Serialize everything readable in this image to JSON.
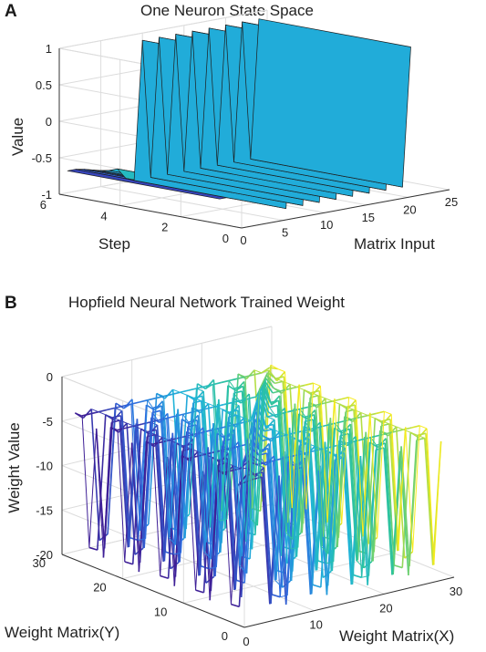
{
  "chart_data": [
    {
      "panel": "A",
      "type": "surface",
      "title": "One Neuron State Space",
      "xlabel": "Matrix Input",
      "ylabel": "Step",
      "zlabel": "Value",
      "xlim": [
        0,
        25
      ],
      "ylim": [
        0,
        6
      ],
      "zlim": [
        -1,
        1
      ],
      "xticks": [
        "0",
        "5",
        "10",
        "15",
        "20",
        "25"
      ],
      "yticks": [
        "0",
        "2",
        "4",
        "6"
      ],
      "zticks": [
        "-1",
        "-0.5",
        "0",
        "0.5",
        "1"
      ],
      "matrix_input": [
        1,
        2,
        3,
        4,
        5,
        6,
        7,
        8,
        9,
        10,
        11,
        12,
        13,
        14,
        15,
        16,
        17,
        18,
        19,
        20,
        21,
        22,
        23,
        24
      ],
      "steps": [
        1,
        6
      ],
      "value_at_step_1": [
        -0.7,
        -0.7,
        -0.72,
        -0.75,
        -0.78,
        -0.8,
        -0.8,
        -0.95,
        -1,
        0.9,
        -1,
        0.9,
        -1,
        0.9,
        -1,
        0.9,
        -1,
        0.9,
        -1,
        0.9,
        -1,
        0.9,
        -1,
        0.9
      ],
      "value_at_step_6": [
        -0.7,
        -0.7,
        -0.72,
        -0.75,
        -0.78,
        -0.8,
        -0.8,
        -0.95,
        -1,
        0.9,
        -1,
        0.9,
        -1,
        0.9,
        -1,
        0.9,
        -1,
        0.9,
        -1,
        0.9,
        -1,
        0.9,
        -1,
        0.9
      ],
      "grid": true,
      "colormap": [
        "#3e1f96",
        "#2f6ee0",
        "#1fb3d8",
        "#2ec49b",
        "#f8eb1a"
      ]
    },
    {
      "panel": "B",
      "type": "mesh",
      "title": "Hopfield Neural Network Trained Weight",
      "xlabel": "Weight Matrix(X)",
      "ylabel": "Weight Matrix(Y)",
      "zlabel": "Weight Value",
      "xlim": [
        0,
        30
      ],
      "ylim": [
        0,
        30
      ],
      "zlim": [
        -20,
        0
      ],
      "xticks": [
        "0",
        "10",
        "20",
        "30"
      ],
      "yticks": [
        "0",
        "10",
        "20",
        "30"
      ],
      "zticks": [
        "-20",
        "-15",
        "-10",
        "-5",
        "0"
      ],
      "grid_size": 25,
      "weight_high": -4,
      "weight_low": -19,
      "diagonal_peak": -1,
      "grid": true,
      "colormap": [
        "#3e1f96",
        "#2f6ee0",
        "#1fb3d8",
        "#2ec49b",
        "#f8eb1a"
      ]
    }
  ],
  "panels": {
    "a": {
      "letter": "A"
    },
    "b": {
      "letter": "B"
    }
  }
}
